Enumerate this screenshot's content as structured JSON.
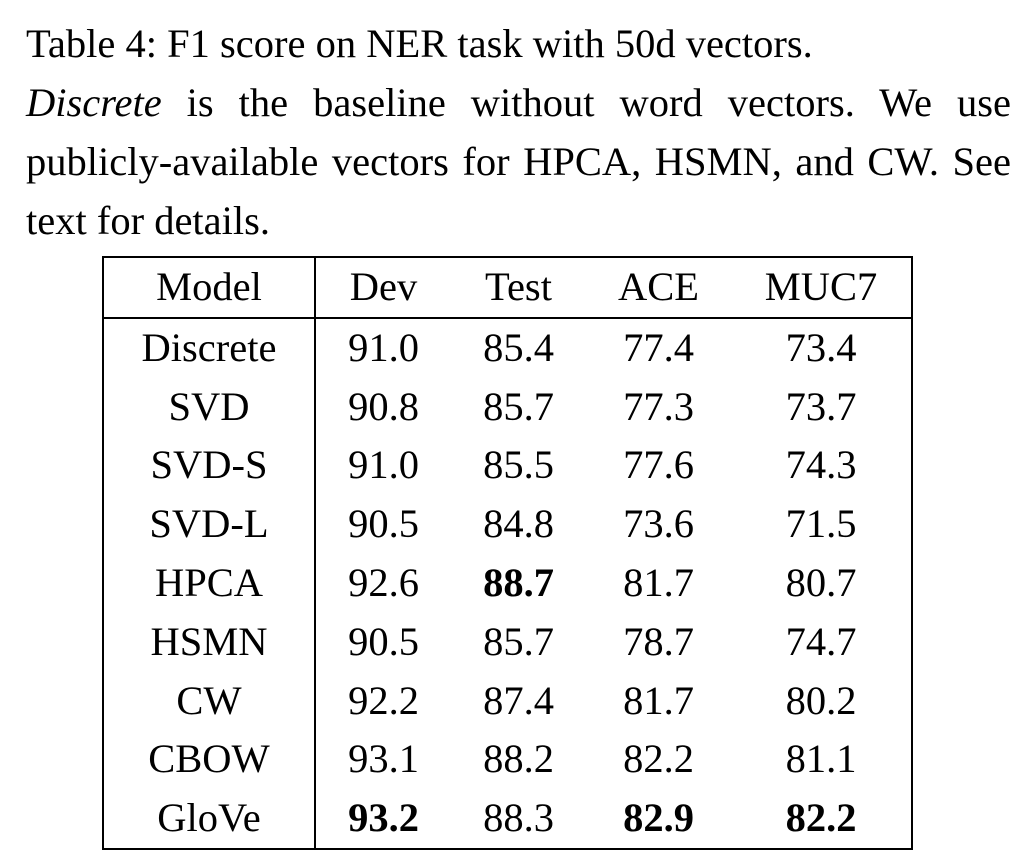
{
  "caption": {
    "prefix": "Table 4: F1 score on NER task with 50d vectors.",
    "em": "Discrete",
    "suffix": " is the baseline without word vectors. We use publicly-available vectors for HPCA, HSMN, and CW. See text for details."
  },
  "table": {
    "headers": [
      "Model",
      "Dev",
      "Test",
      "ACE",
      "MUC7"
    ],
    "rows": [
      {
        "model": "Discrete",
        "dev": "91.0",
        "test": "85.4",
        "ace": "77.4",
        "muc7": "73.4"
      },
      {
        "model": "SVD",
        "dev": "90.8",
        "test": "85.7",
        "ace": "77.3",
        "muc7": "73.7"
      },
      {
        "model": "SVD-S",
        "dev": "91.0",
        "test": "85.5",
        "ace": "77.6",
        "muc7": "74.3"
      },
      {
        "model": "SVD-L",
        "dev": "90.5",
        "test": "84.8",
        "ace": "73.6",
        "muc7": "71.5"
      },
      {
        "model": "HPCA",
        "dev": "92.6",
        "test": "88.7",
        "ace": "81.7",
        "muc7": "80.7"
      },
      {
        "model": "HSMN",
        "dev": "90.5",
        "test": "85.7",
        "ace": "78.7",
        "muc7": "74.7"
      },
      {
        "model": "CW",
        "dev": "92.2",
        "test": "87.4",
        "ace": "81.7",
        "muc7": "80.2"
      },
      {
        "model": "CBOW",
        "dev": "93.1",
        "test": "88.2",
        "ace": "82.2",
        "muc7": "81.1"
      },
      {
        "model": "GloVe",
        "dev": "93.2",
        "test": "88.3",
        "ace": "82.9",
        "muc7": "82.2"
      }
    ],
    "bold_cells": [
      {
        "row": 4,
        "col": "test"
      },
      {
        "row": 8,
        "col": "dev"
      },
      {
        "row": 8,
        "col": "ace"
      },
      {
        "row": 8,
        "col": "muc7"
      }
    ]
  }
}
